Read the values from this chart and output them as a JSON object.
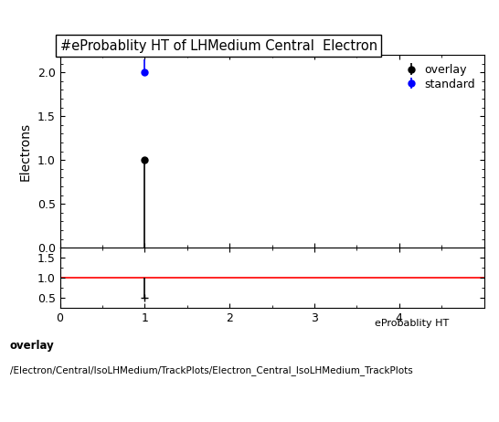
{
  "title": "#eProbablity HT of LHMedium Central  Electron",
  "ylabel_main": "Electrons",
  "xlabel": "eProbablity HT",
  "xlim": [
    0,
    5.0
  ],
  "ylim_main": [
    0,
    2.2
  ],
  "ylim_ratio": [
    0.25,
    1.75
  ],
  "ratio_yticks": [
    0.5,
    1.0,
    1.5
  ],
  "overlay_x": [
    1.0
  ],
  "overlay_y": [
    1.0
  ],
  "overlay_yerr_low": [
    1.0
  ],
  "overlay_yerr_high": [
    0.0
  ],
  "overlay_color": "#000000",
  "overlay_label": "overlay",
  "standard_x": [
    1.0
  ],
  "standard_y": [
    2.0
  ],
  "standard_yerr_low": [
    0.0
  ],
  "standard_yerr_high": [
    0.15
  ],
  "standard_color": "#0000ff",
  "standard_label": "standard",
  "ratio_x": [
    1.0
  ],
  "ratio_y": [
    0.5
  ],
  "ratio_yerr_low": [
    0.0
  ],
  "ratio_yerr_high": [
    0.5
  ],
  "ratio_line_y": 1.0,
  "ratio_line_color": "#ff0000",
  "footer_line1": "overlay",
  "footer_line2": "/Electron/Central/IsoLHMedium/TrackPlots/Electron_Central_IsoLHMedium_TrackPlots",
  "xticks_main": [
    0,
    1,
    2,
    3,
    4
  ],
  "xticks_ratio": [
    0,
    1,
    2,
    3,
    4
  ],
  "background_color": "#ffffff"
}
